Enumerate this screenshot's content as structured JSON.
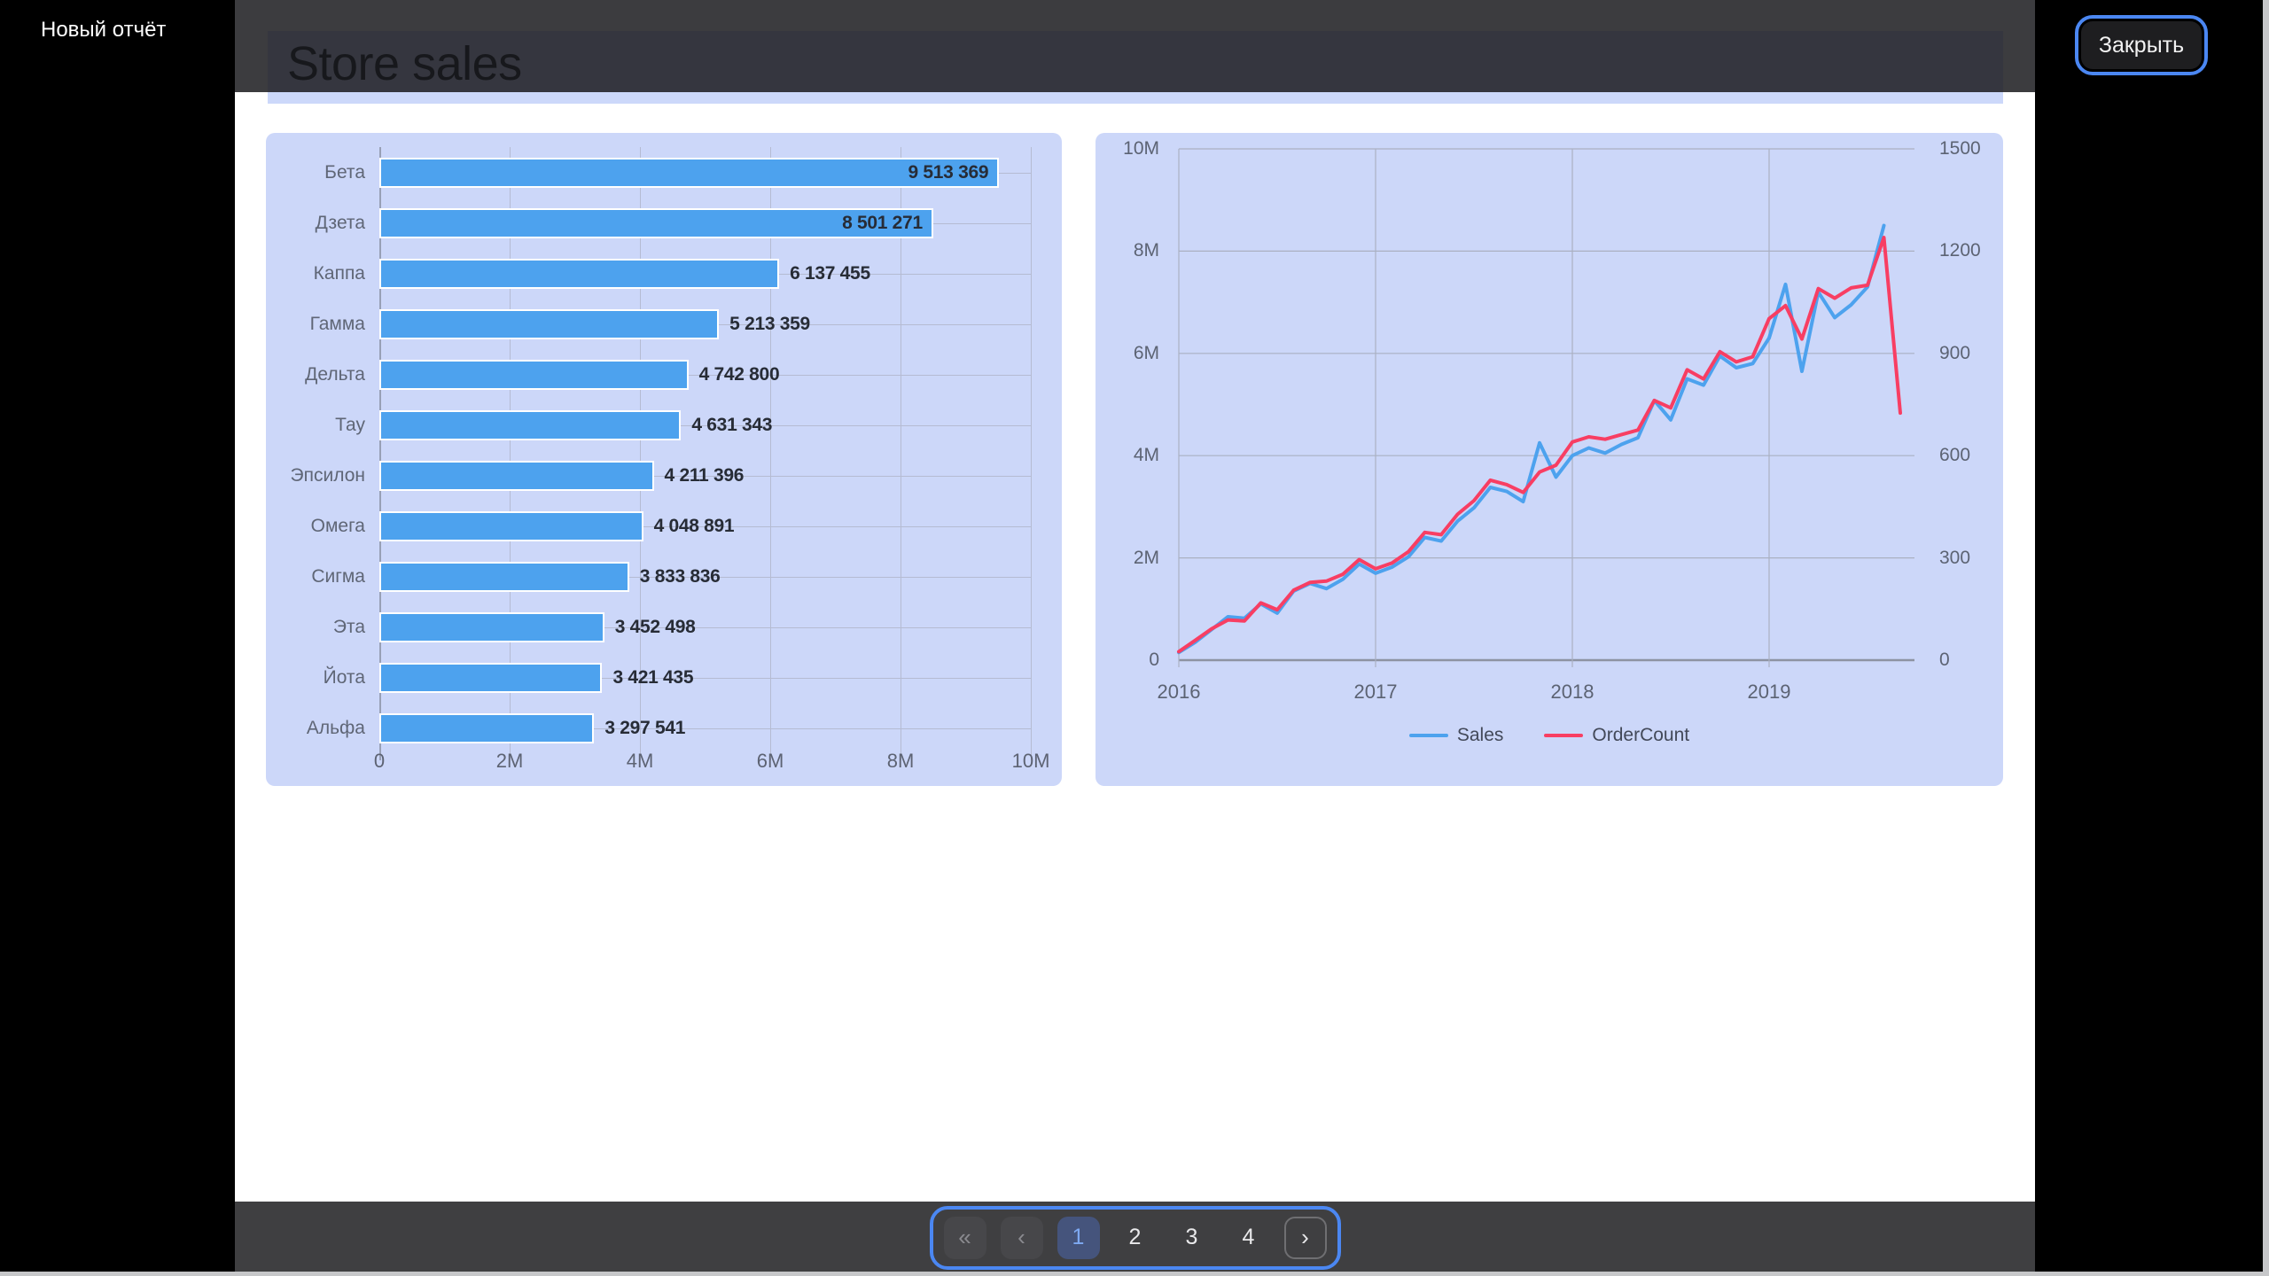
{
  "sidebar": {
    "new_report_label": "Новый отчёт"
  },
  "header": {
    "title": "Store sales",
    "close_label": "Закрыть"
  },
  "pagination": {
    "first_label": "«",
    "prev_label": "‹",
    "next_label": "›",
    "pages": [
      "1",
      "2",
      "3",
      "4"
    ],
    "active_page": "1"
  },
  "colors": {
    "bar_blue": "#4da2ee",
    "line_blue": "#4da2ee",
    "line_red": "#f83e63",
    "focus_ring": "#4b87f2",
    "card_background": "#ccd7f9",
    "active_page_background": "#45547c"
  },
  "chart_data": [
    {
      "type": "bar",
      "orientation": "horizontal",
      "title": "",
      "categories": [
        "Бета",
        "Дзета",
        "Каппа",
        "Гамма",
        "Дельта",
        "Тау",
        "Эпсилон",
        "Омега",
        "Сигма",
        "Эта",
        "Йота",
        "Альфа"
      ],
      "values": [
        9513369,
        8501271,
        6137455,
        5213359,
        4742800,
        4631343,
        4211396,
        4048891,
        3833836,
        3452498,
        3421435,
        3297541
      ],
      "value_labels": [
        "9 513 369",
        "8 501 271",
        "6 137 455",
        "5 213 359",
        "4 742 800",
        "4 631 343",
        "4 211 396",
        "4 048 891",
        "3 833 836",
        "3 452 498",
        "3 421 435",
        "3 297 541"
      ],
      "x_ticks": [
        "0",
        "2M",
        "4M",
        "6M",
        "8M",
        "10M"
      ],
      "xlim": [
        0,
        10000000
      ],
      "bar_color": "#4da2ee",
      "grid": true
    },
    {
      "type": "line",
      "title": "",
      "x_start": "2016-01",
      "x_step": "month",
      "x_ticks": [
        "2016",
        "2017",
        "2018",
        "2019"
      ],
      "y_left": {
        "ticks": [
          "10M",
          "8M",
          "6M",
          "4M",
          "2M",
          "0"
        ],
        "lim": [
          0,
          10000000
        ]
      },
      "y_right": {
        "ticks": [
          "1500",
          "1200",
          "900",
          "600",
          "300",
          "0"
        ],
        "lim": [
          0,
          1500
        ]
      },
      "grid": true,
      "legend_position": "bottom",
      "series": [
        {
          "name": "Sales",
          "axis": "left",
          "color": "#4da2ee",
          "values": [
            150000,
            350000,
            600000,
            850000,
            820000,
            1100000,
            920000,
            1350000,
            1500000,
            1400000,
            1580000,
            1880000,
            1700000,
            1820000,
            2020000,
            2400000,
            2330000,
            2720000,
            2980000,
            3380000,
            3300000,
            3100000,
            4250000,
            3580000,
            4000000,
            4150000,
            4050000,
            4220000,
            4350000,
            5080000,
            4700000,
            5500000,
            5380000,
            5950000,
            5720000,
            5800000,
            6300000,
            7350000,
            5650000,
            7200000,
            6700000,
            6950000,
            7300000,
            8500000
          ]
        },
        {
          "name": "OrderCount",
          "axis": "right",
          "color": "#f83e63",
          "values": [
            25,
            58,
            92,
            118,
            115,
            168,
            148,
            205,
            228,
            232,
            252,
            295,
            268,
            285,
            318,
            375,
            368,
            428,
            468,
            528,
            515,
            492,
            552,
            572,
            640,
            655,
            648,
            662,
            675,
            762,
            740,
            852,
            825,
            905,
            875,
            890,
            1002,
            1040,
            942,
            1090,
            1062,
            1092,
            1100,
            1240,
            725
          ]
        }
      ]
    }
  ]
}
